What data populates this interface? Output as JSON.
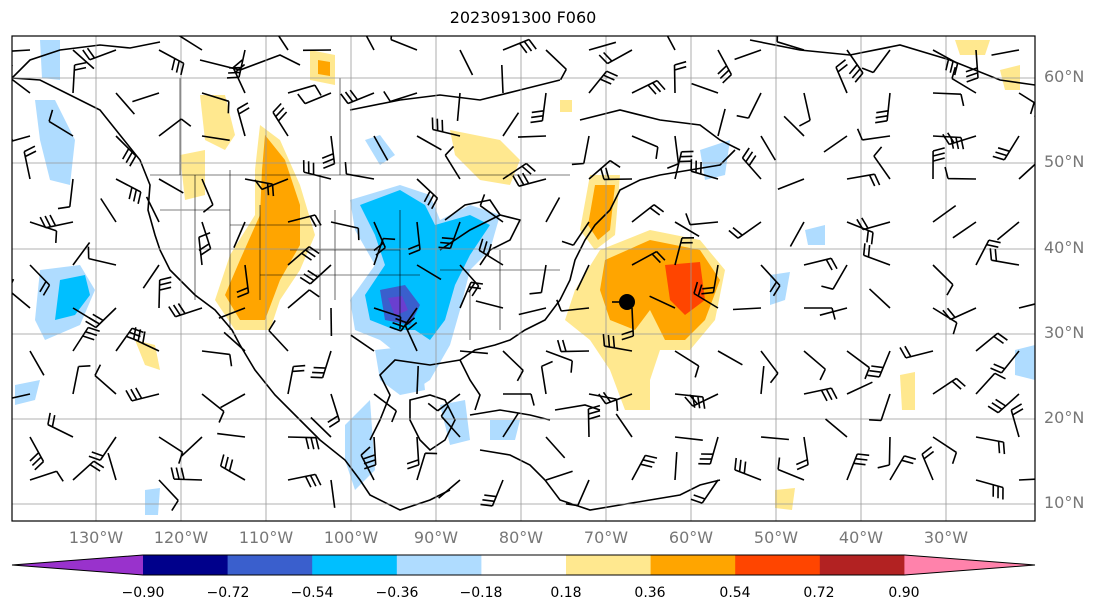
{
  "title": "2023091300 F060",
  "lat_labels": [
    "60°N",
    "50°N",
    "40°N",
    "30°N",
    "20°N",
    "10°N"
  ],
  "lon_labels": [
    "130°W",
    "120°W",
    "110°W",
    "100°W",
    "90°W",
    "80°W",
    "70°W",
    "60°W",
    "50°W",
    "40°W",
    "30°W"
  ],
  "colorbar": {
    "labels": [
      "−0.90",
      "−0.72",
      "−0.54",
      "−0.36",
      "−0.18",
      "0.18",
      "0.36",
      "0.54",
      "0.72",
      "0.90"
    ],
    "colors": [
      "#9932cc",
      "#00008b",
      "#3a5fcd",
      "#00bfff",
      "#afdcff",
      "#ffffff",
      "#ffe88f",
      "#ffa500",
      "#ff4500",
      "#b22222",
      "#ff82ab"
    ]
  },
  "storm_marker": {
    "label": "storm-center"
  }
}
